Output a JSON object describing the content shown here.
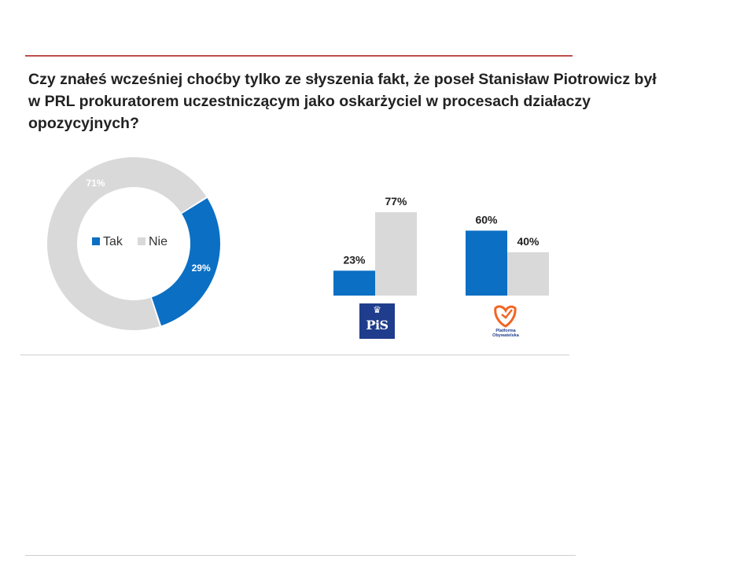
{
  "question": "Czy znałeś wcześniej choćby tylko ze słyszenia fakt, że poseł Stanisław Piotrowicz był w PRL prokuratorem uczestniczącym jako oskarżyciel w procesach działaczy opozycyjnych?",
  "colors": {
    "tak": "#0b6fc4",
    "nie": "#d9d9d9",
    "accent_rule": "#c0504d",
    "pis_blue": "#1f3d8c",
    "po_orange": "#f26522"
  },
  "chart_data": [
    {
      "type": "pie",
      "variant": "donut",
      "title": "",
      "categories": [
        "Tak",
        "Nie"
      ],
      "values": [
        29,
        71
      ],
      "labels": [
        "29%",
        "71%"
      ],
      "legend": [
        "Tak",
        "Nie"
      ],
      "legend_position": "center"
    },
    {
      "type": "bar",
      "title": "",
      "categories": [
        "PiS",
        "Platforma Obywatelska"
      ],
      "series": [
        {
          "name": "Tak",
          "values": [
            23,
            60
          ],
          "labels": [
            "23%",
            "60%"
          ]
        },
        {
          "name": "Nie",
          "values": [
            77,
            40
          ],
          "labels": [
            "77%",
            "40%"
          ]
        }
      ],
      "ylim": [
        0,
        100
      ],
      "grid": false
    }
  ],
  "logos": {
    "pis": {
      "text": "PiS"
    },
    "po": {
      "text": "Platforma Obywatelska"
    }
  }
}
